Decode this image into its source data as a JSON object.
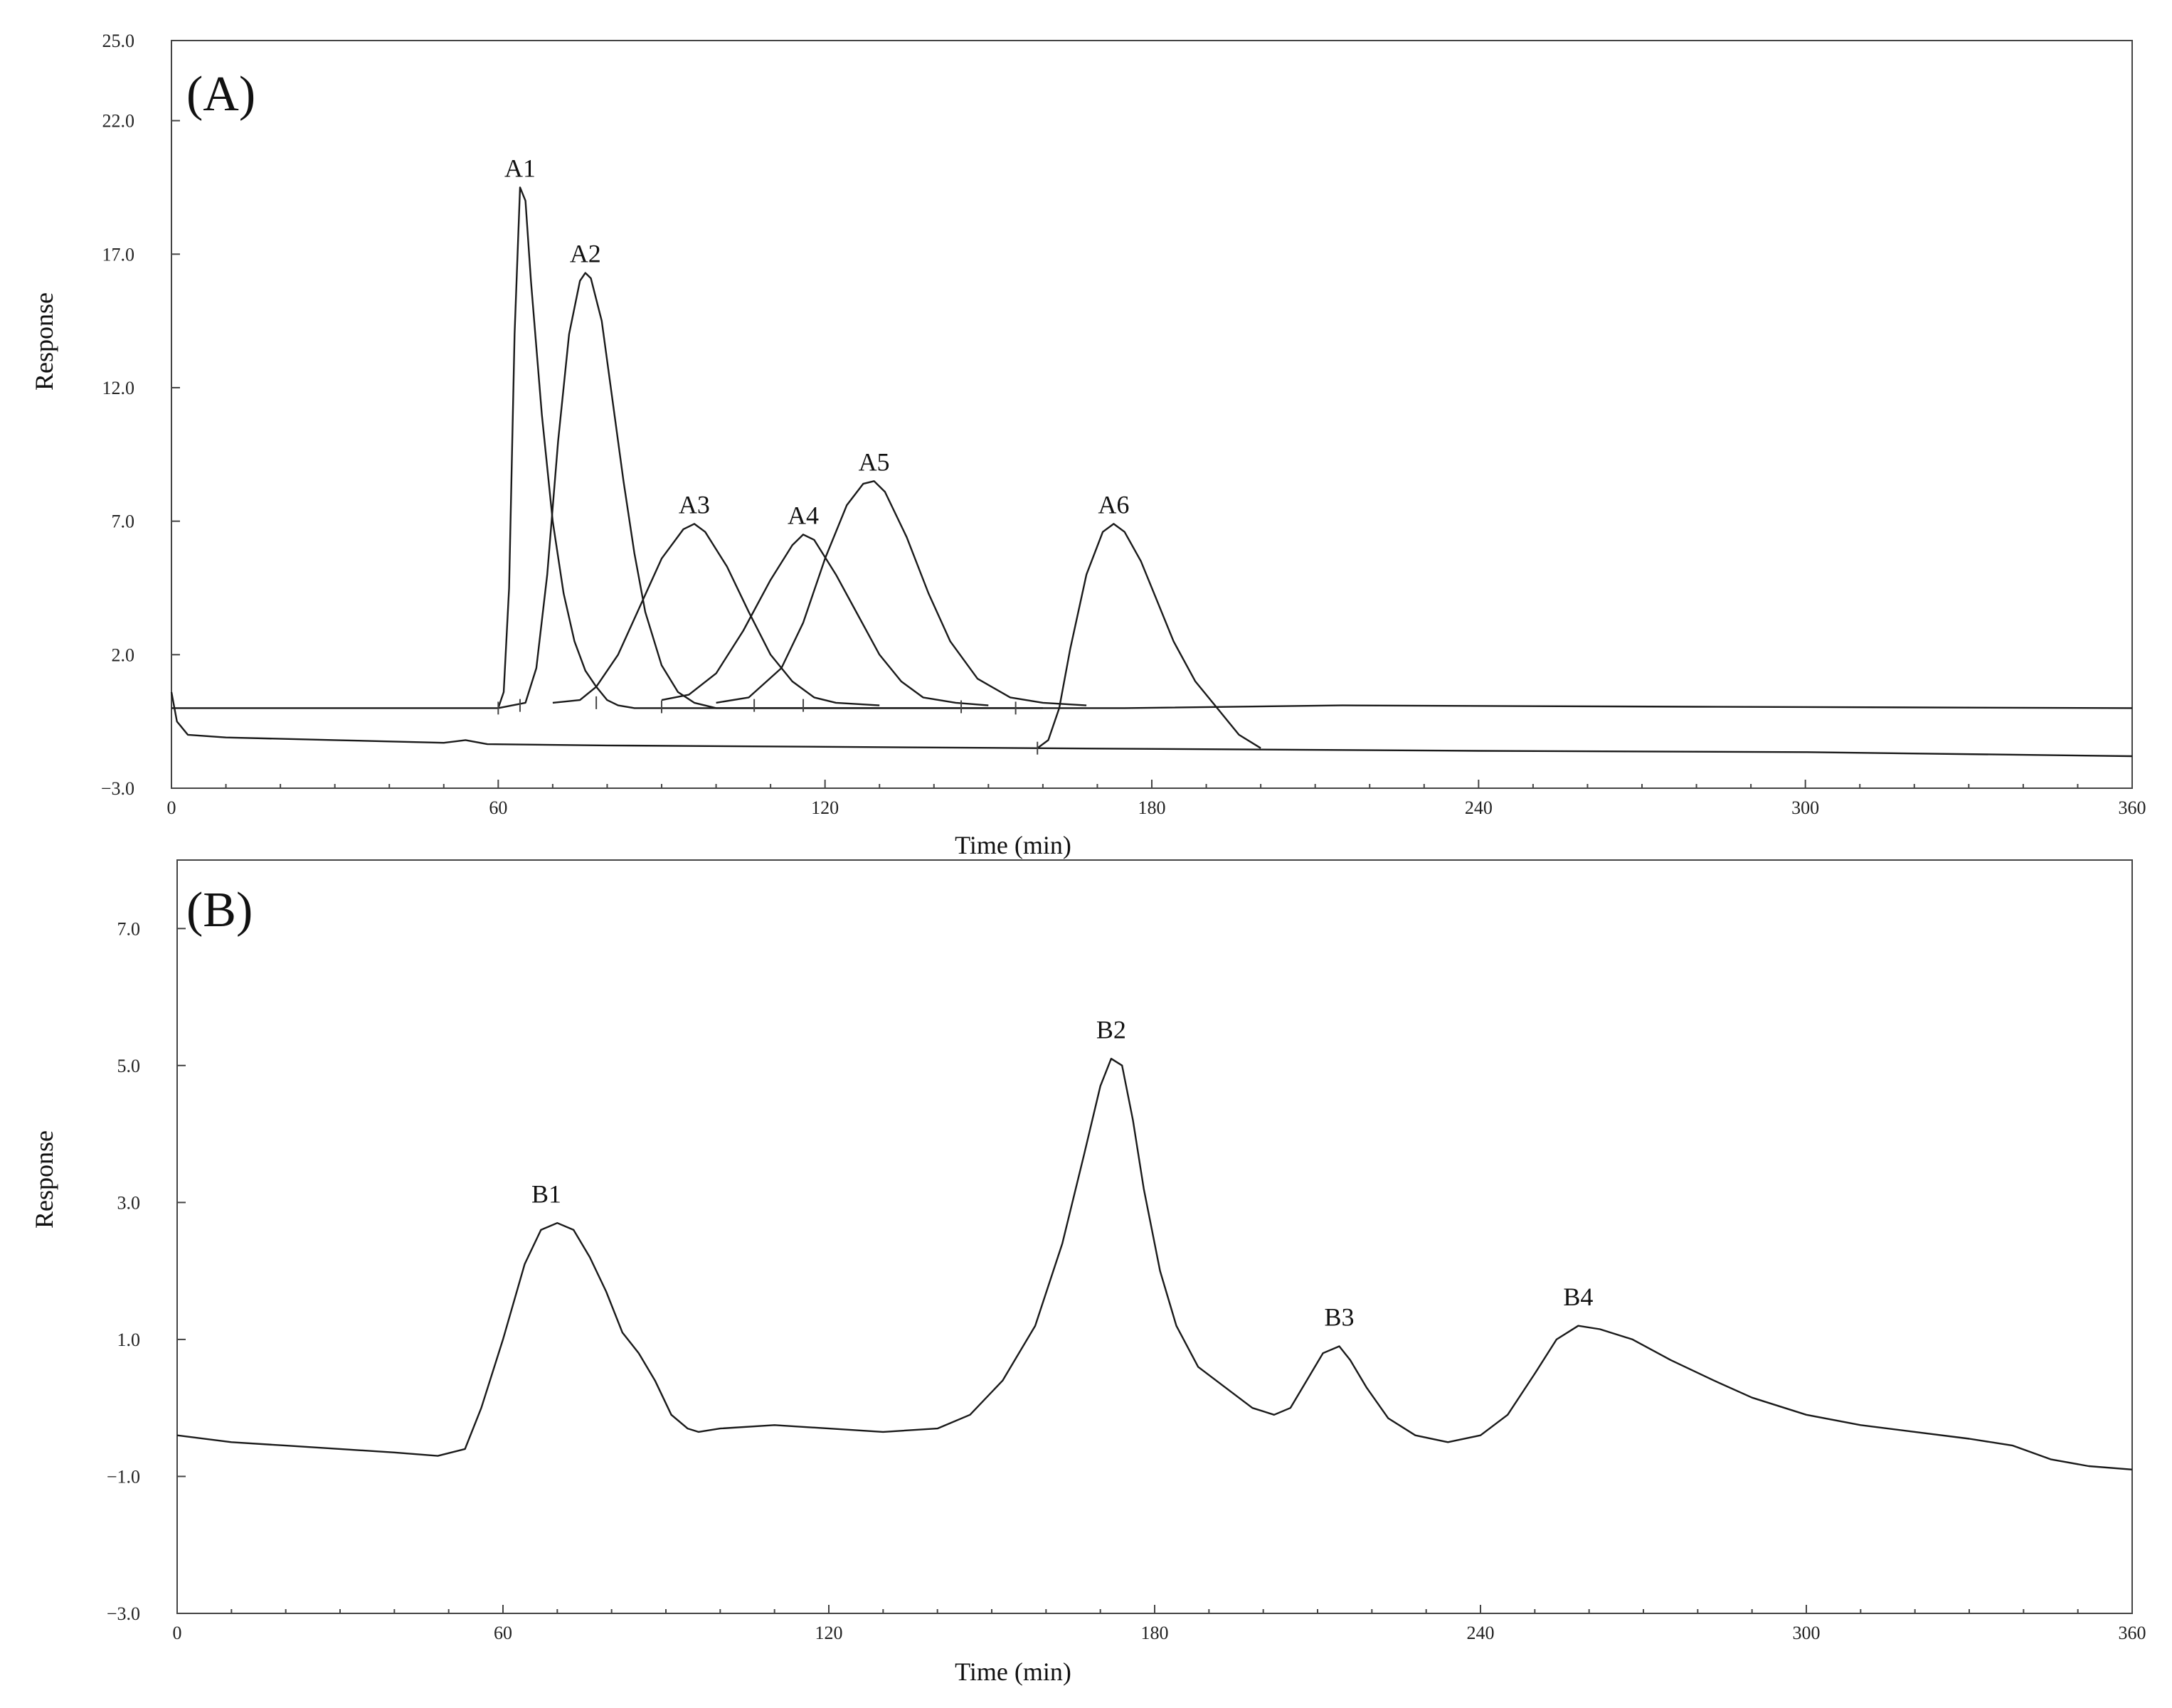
{
  "chart_data": [
    {
      "type": "line",
      "panel_label": "(A)",
      "xlabel": "Time (min)",
      "ylabel": "Response",
      "xlim": [
        0,
        360
      ],
      "ylim": [
        -3.0,
        25.0
      ],
      "x_major_ticks": [
        0,
        60,
        120,
        180,
        240,
        300,
        360
      ],
      "x_minor_step": 10,
      "y_ticks": [
        -3.0,
        2.0,
        7.0,
        12.0,
        17.0,
        22.0,
        25.0
      ],
      "x_tick_labels": [
        "0",
        "60",
        "120",
        "180",
        "240",
        "300",
        "360"
      ],
      "y_tick_labels": [
        "−3.0",
        "2.0",
        "7.0",
        "12.0",
        "17.0",
        "22.0",
        "25.0"
      ],
      "grid": false,
      "series": [
        {
          "points": [
            [
              0,
              0.6
            ],
            [
              1,
              -0.5
            ],
            [
              3,
              -1.0
            ],
            [
              10,
              -1.1
            ],
            [
              30,
              -1.2
            ],
            [
              50,
              -1.3
            ],
            [
              54,
              -1.2
            ],
            [
              58,
              -1.35
            ],
            [
              80,
              -1.4
            ],
            [
              120,
              -1.45
            ],
            [
              158,
              -1.5
            ],
            [
              240,
              -1.6
            ],
            [
              300,
              -1.65
            ],
            [
              360,
              -1.8
            ]
          ]
        },
        {
          "points": [
            [
              0,
              0.0
            ],
            [
              60,
              0.0
            ],
            [
              61,
              0.6
            ],
            [
              62,
              4.5
            ],
            [
              63,
              14.0
            ],
            [
              64,
              19.5
            ],
            [
              65,
              19.0
            ],
            [
              66,
              16.0
            ],
            [
              68,
              11.0
            ],
            [
              70,
              7.0
            ],
            [
              72,
              4.3
            ],
            [
              74,
              2.5
            ],
            [
              76,
              1.4
            ],
            [
              78,
              0.8
            ],
            [
              80,
              0.3
            ],
            [
              82,
              0.1
            ],
            [
              85,
              0.0
            ],
            [
              130,
              0.0
            ],
            [
              175,
              0.0
            ],
            [
              215,
              0.1
            ],
            [
              280,
              0.05
            ],
            [
              360,
              0.0
            ]
          ]
        },
        {
          "points": [
            [
              60,
              0.0
            ],
            [
              65,
              0.2
            ],
            [
              67,
              1.5
            ],
            [
              69,
              5.0
            ],
            [
              71,
              10.0
            ],
            [
              73,
              14.0
            ],
            [
              75,
              16.0
            ],
            [
              76,
              16.3
            ],
            [
              77,
              16.1
            ],
            [
              79,
              14.5
            ],
            [
              81,
              11.5
            ],
            [
              83,
              8.5
            ],
            [
              85,
              5.8
            ],
            [
              87,
              3.6
            ],
            [
              90,
              1.6
            ],
            [
              93,
              0.6
            ],
            [
              96,
              0.2
            ],
            [
              100,
              0.0
            ],
            [
              160,
              0.0
            ]
          ]
        },
        {
          "points": [
            [
              70,
              0.2
            ],
            [
              75,
              0.3
            ],
            [
              78,
              0.8
            ],
            [
              82,
              2.0
            ],
            [
              86,
              3.8
            ],
            [
              90,
              5.6
            ],
            [
              94,
              6.7
            ],
            [
              96,
              6.9
            ],
            [
              98,
              6.6
            ],
            [
              102,
              5.3
            ],
            [
              106,
              3.6
            ],
            [
              110,
              2.0
            ],
            [
              114,
              1.0
            ],
            [
              118,
              0.4
            ],
            [
              122,
              0.2
            ],
            [
              130,
              0.1
            ]
          ]
        },
        {
          "points": [
            [
              90,
              0.3
            ],
            [
              95,
              0.5
            ],
            [
              100,
              1.3
            ],
            [
              105,
              2.9
            ],
            [
              110,
              4.8
            ],
            [
              114,
              6.1
            ],
            [
              116,
              6.5
            ],
            [
              118,
              6.3
            ],
            [
              122,
              5.0
            ],
            [
              126,
              3.5
            ],
            [
              130,
              2.0
            ],
            [
              134,
              1.0
            ],
            [
              138,
              0.4
            ],
            [
              144,
              0.2
            ],
            [
              150,
              0.1
            ]
          ]
        },
        {
          "points": [
            [
              100,
              0.2
            ],
            [
              106,
              0.4
            ],
            [
              112,
              1.5
            ],
            [
              116,
              3.2
            ],
            [
              120,
              5.6
            ],
            [
              124,
              7.6
            ],
            [
              127,
              8.4
            ],
            [
              129,
              8.5
            ],
            [
              131,
              8.1
            ],
            [
              135,
              6.4
            ],
            [
              139,
              4.3
            ],
            [
              143,
              2.5
            ],
            [
              148,
              1.1
            ],
            [
              154,
              0.4
            ],
            [
              160,
              0.2
            ],
            [
              168,
              0.1
            ]
          ]
        },
        {
          "points": [
            [
              159,
              -1.5
            ],
            [
              161,
              -1.2
            ],
            [
              163,
              0.0
            ],
            [
              165,
              2.2
            ],
            [
              168,
              5.0
            ],
            [
              171,
              6.6
            ],
            [
              173,
              6.9
            ],
            [
              175,
              6.6
            ],
            [
              178,
              5.5
            ],
            [
              181,
              4.0
            ],
            [
              184,
              2.5
            ],
            [
              188,
              1.0
            ],
            [
              192,
              0.0
            ],
            [
              196,
              -1.0
            ],
            [
              200,
              -1.5
            ]
          ]
        }
      ],
      "peak_labels": [
        {
          "text": "A1",
          "x": 64.0,
          "y": 19.9
        },
        {
          "text": "A2",
          "x": 76.0,
          "y": 16.7
        },
        {
          "text": "A3",
          "x": 96.0,
          "y": 7.3
        },
        {
          "text": "A4",
          "x": 116.0,
          "y": 6.9
        },
        {
          "text": "A5",
          "x": 129.0,
          "y": 8.9
        },
        {
          "text": "A6",
          "x": 173.0,
          "y": 7.3
        }
      ],
      "baseline_markers": [
        [
          60,
          0.0
        ],
        [
          64,
          0.1
        ],
        [
          78,
          0.2
        ],
        [
          90,
          0.05
        ],
        [
          107,
          0.1
        ],
        [
          116,
          0.1
        ],
        [
          145,
          0.05
        ],
        [
          155,
          0.0
        ],
        [
          159,
          -1.5
        ]
      ]
    },
    {
      "type": "line",
      "panel_label": "(B)",
      "xlabel": "Time (min)",
      "ylabel": "Response",
      "xlim": [
        0,
        360
      ],
      "ylim": [
        -3.0,
        8.0
      ],
      "x_major_ticks": [
        0,
        60,
        120,
        180,
        240,
        300,
        360
      ],
      "x_minor_step": 10,
      "y_ticks": [
        -3.0,
        -1.0,
        1.0,
        3.0,
        5.0,
        7.0
      ],
      "x_tick_labels": [
        "0",
        "60",
        "120",
        "180",
        "240",
        "300",
        "360"
      ],
      "y_tick_labels": [
        "−3.0",
        "−1.0",
        "1.0",
        "3.0",
        "5.0",
        "7.0"
      ],
      "grid": false,
      "series": [
        {
          "points": [
            [
              0,
              -0.4
            ],
            [
              10,
              -0.5
            ],
            [
              20,
              -0.55
            ],
            [
              30,
              -0.6
            ],
            [
              40,
              -0.65
            ],
            [
              48,
              -0.7
            ],
            [
              53,
              -0.6
            ],
            [
              56,
              0.0
            ],
            [
              60,
              1.0
            ],
            [
              64,
              2.1
            ],
            [
              67,
              2.6
            ],
            [
              70,
              2.7
            ],
            [
              73,
              2.6
            ],
            [
              76,
              2.2
            ],
            [
              79,
              1.7
            ],
            [
              82,
              1.1
            ],
            [
              85,
              0.8
            ],
            [
              88,
              0.4
            ],
            [
              91,
              -0.1
            ],
            [
              94,
              -0.3
            ],
            [
              96,
              -0.35
            ],
            [
              100,
              -0.3
            ],
            [
              110,
              -0.25
            ],
            [
              120,
              -0.3
            ],
            [
              130,
              -0.35
            ],
            [
              140,
              -0.3
            ],
            [
              146,
              -0.1
            ],
            [
              152,
              0.4
            ],
            [
              158,
              1.2
            ],
            [
              163,
              2.4
            ],
            [
              167,
              3.7
            ],
            [
              170,
              4.7
            ],
            [
              172,
              5.1
            ],
            [
              174,
              5.0
            ],
            [
              176,
              4.2
            ],
            [
              178,
              3.2
            ],
            [
              181,
              2.0
            ],
            [
              184,
              1.2
            ],
            [
              188,
              0.6
            ],
            [
              193,
              0.3
            ],
            [
              198,
              0.0
            ],
            [
              202,
              -0.1
            ],
            [
              205,
              0.0
            ],
            [
              208,
              0.4
            ],
            [
              211,
              0.8
            ],
            [
              214,
              0.9
            ],
            [
              216,
              0.7
            ],
            [
              219,
              0.3
            ],
            [
              223,
              -0.15
            ],
            [
              228,
              -0.4
            ],
            [
              234,
              -0.5
            ],
            [
              240,
              -0.4
            ],
            [
              245,
              -0.1
            ],
            [
              250,
              0.5
            ],
            [
              254,
              1.0
            ],
            [
              258,
              1.2
            ],
            [
              262,
              1.15
            ],
            [
              268,
              1.0
            ],
            [
              275,
              0.7
            ],
            [
              283,
              0.4
            ],
            [
              290,
              0.15
            ],
            [
              300,
              -0.1
            ],
            [
              310,
              -0.25
            ],
            [
              320,
              -0.35
            ],
            [
              330,
              -0.45
            ],
            [
              338,
              -0.55
            ],
            [
              345,
              -0.75
            ],
            [
              352,
              -0.85
            ],
            [
              360,
              -0.9
            ]
          ]
        }
      ],
      "peak_labels": [
        {
          "text": "B1",
          "x": 68.0,
          "y": 3.0
        },
        {
          "text": "B2",
          "x": 172.0,
          "y": 5.4
        },
        {
          "text": "B3",
          "x": 214.0,
          "y": 1.2
        },
        {
          "text": "B4",
          "x": 258.0,
          "y": 1.5
        }
      ]
    }
  ]
}
